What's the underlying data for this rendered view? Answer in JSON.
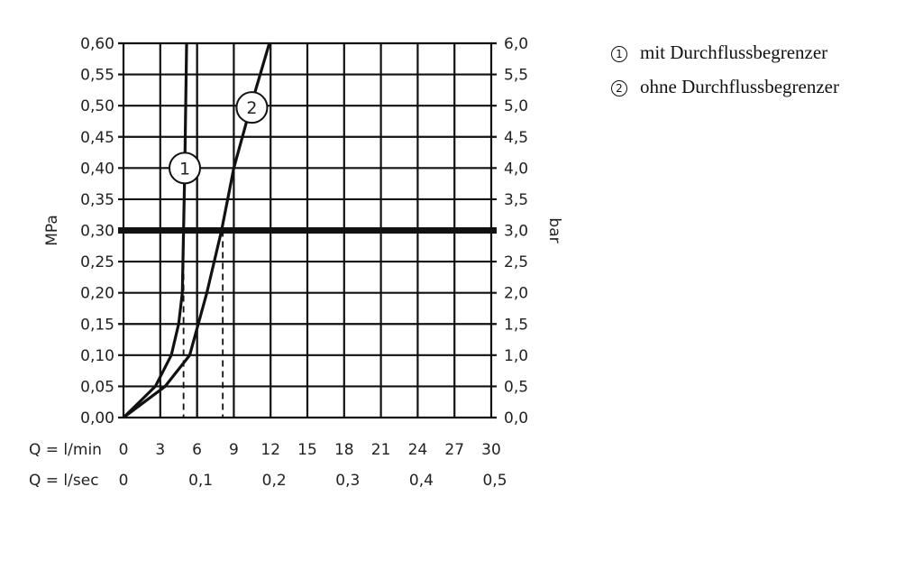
{
  "chart_data": {
    "type": "line",
    "ylabel_left": "MPa",
    "ylabel_right": "bar",
    "xlim": [
      0,
      30
    ],
    "ylim": [
      0,
      0.6
    ],
    "grid": true,
    "y_ticks_left": [
      "0,00",
      "0,05",
      "0,10",
      "0,15",
      "0,20",
      "0,25",
      "0,30",
      "0,35",
      "0,40",
      "0,45",
      "0,50",
      "0,55",
      "0,60"
    ],
    "y_ticks_right": [
      "0,0",
      "0,5",
      "1,0",
      "1,5",
      "2,0",
      "2,5",
      "3,0",
      "3,5",
      "4,0",
      "4,5",
      "5,0",
      "5,5",
      "6,0"
    ],
    "x_row1_label": "Q = l/min",
    "x_ticks_row1": [
      "0",
      "3",
      "6",
      "9",
      "12",
      "15",
      "18",
      "21",
      "24",
      "27",
      "30"
    ],
    "x_row2_label": "Q = l/sec",
    "x_ticks_row2": [
      "0",
      "0,1",
      "0,2",
      "0,3",
      "0,4",
      "0,5"
    ],
    "reference_line_y": 0.3,
    "series": [
      {
        "name": "1",
        "x": [
          0,
          1.3,
          2.6,
          3.9,
          4.5,
          4.8,
          4.9,
          5.0,
          5.15
        ],
        "y": [
          0,
          0.025,
          0.05,
          0.1,
          0.15,
          0.2,
          0.3,
          0.4,
          0.6
        ],
        "marker_at_y": 0.4,
        "dashed_drop_x": 4.9
      },
      {
        "name": "2",
        "x": [
          0,
          1.7,
          3.4,
          5.4,
          6.8,
          8.0,
          9.0,
          10.4,
          11.9
        ],
        "y": [
          0,
          0.025,
          0.05,
          0.1,
          0.2,
          0.3,
          0.4,
          0.5,
          0.6
        ],
        "marker_at_y": 0.5,
        "dashed_drop_x": 8.1
      }
    ]
  },
  "legend": [
    {
      "num": "1",
      "label": "mit Durchflussbegrenzer"
    },
    {
      "num": "2",
      "label": "ohne Durchflussbegrenzer"
    }
  ]
}
